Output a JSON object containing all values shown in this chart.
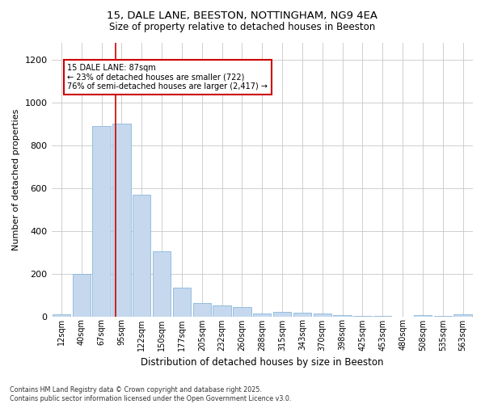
{
  "title_line1": "15, DALE LANE, BEESTON, NOTTINGHAM, NG9 4EA",
  "title_line2": "Size of property relative to detached houses in Beeston",
  "xlabel": "Distribution of detached houses by size in Beeston",
  "ylabel": "Number of detached properties",
  "categories": [
    "12sqm",
    "40sqm",
    "67sqm",
    "95sqm",
    "122sqm",
    "150sqm",
    "177sqm",
    "205sqm",
    "232sqm",
    "260sqm",
    "288sqm",
    "315sqm",
    "343sqm",
    "370sqm",
    "398sqm",
    "425sqm",
    "453sqm",
    "480sqm",
    "508sqm",
    "535sqm",
    "563sqm"
  ],
  "values": [
    10,
    200,
    890,
    900,
    570,
    305,
    135,
    62,
    50,
    45,
    15,
    20,
    18,
    13,
    5,
    3,
    1,
    0,
    5,
    2,
    10
  ],
  "bar_color": "#c5d8ee",
  "bar_edge_color": "#7aadd4",
  "background_color": "#ffffff",
  "grid_color": "#c8c8c8",
  "vline_x": 2.72,
  "vline_color": "#cc0000",
  "annotation_text": "15 DALE LANE: 87sqm\n← 23% of detached houses are smaller (722)\n76% of semi-detached houses are larger (2,417) →",
  "annotation_box_color": "#cc0000",
  "ylim": [
    0,
    1280
  ],
  "yticks": [
    0,
    200,
    400,
    600,
    800,
    1000,
    1200
  ],
  "footnote": "Contains HM Land Registry data © Crown copyright and database right 2025.\nContains public sector information licensed under the Open Government Licence v3.0."
}
